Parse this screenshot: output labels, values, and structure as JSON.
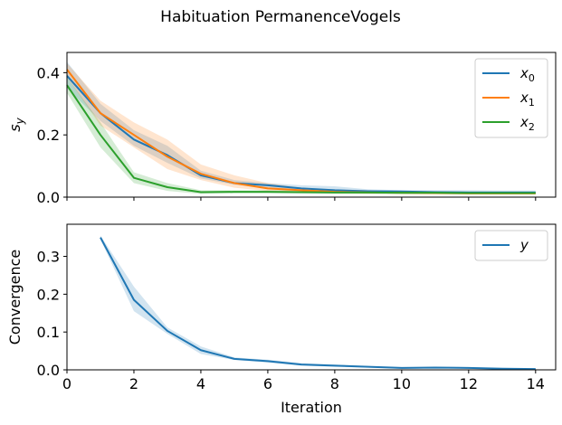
{
  "figure": {
    "title": "Habituation PermanenceVogels"
  },
  "colors": {
    "x0": "#1f77b4",
    "x1": "#ff7f0e",
    "x2": "#2ca02c",
    "y": "#1f77b4"
  },
  "chart_data": [
    {
      "type": "line",
      "ylabel": "s_y",
      "ylabel_parts": {
        "base": "s",
        "sub": "y"
      },
      "xlabel": "",
      "xlim": [
        0,
        14.6
      ],
      "ylim": [
        0,
        0.465
      ],
      "xticks": [
        0,
        2,
        4,
        6,
        8,
        10,
        12,
        14
      ],
      "yticks": [
        0.0,
        0.2,
        0.4
      ],
      "ytick_labels": [
        "0.0",
        "0.2",
        "0.4"
      ],
      "show_xtick_labels": false,
      "grid": false,
      "legend": "top-right",
      "x": [
        0,
        1,
        2,
        3,
        4,
        5,
        6,
        7,
        8,
        9,
        10,
        11,
        12,
        13,
        14
      ],
      "series": [
        {
          "name": "x0",
          "label_base": "x",
          "label_sub": "0",
          "color_key": "x0",
          "values": [
            0.39,
            0.27,
            0.185,
            0.135,
            0.07,
            0.045,
            0.038,
            0.028,
            0.022,
            0.019,
            0.018,
            0.016,
            0.015,
            0.015,
            0.015
          ],
          "lower": [
            0.35,
            0.245,
            0.165,
            0.11,
            0.06,
            0.04,
            0.03,
            0.022,
            0.015,
            0.014,
            0.013,
            0.012,
            0.011,
            0.011,
            0.011
          ],
          "upper": [
            0.435,
            0.3,
            0.215,
            0.165,
            0.085,
            0.055,
            0.045,
            0.038,
            0.035,
            0.025,
            0.022,
            0.022,
            0.022,
            0.021,
            0.021
          ]
        },
        {
          "name": "x1",
          "label_base": "x",
          "label_sub": "1",
          "color_key": "x1",
          "values": [
            0.41,
            0.27,
            0.2,
            0.13,
            0.075,
            0.045,
            0.028,
            0.022,
            0.017,
            0.015,
            0.014,
            0.013,
            0.012,
            0.012,
            0.012
          ],
          "lower": [
            0.385,
            0.23,
            0.16,
            0.09,
            0.055,
            0.03,
            0.02,
            0.015,
            0.012,
            0.011,
            0.01,
            0.01,
            0.01,
            0.009,
            0.009
          ],
          "upper": [
            0.43,
            0.31,
            0.24,
            0.185,
            0.105,
            0.07,
            0.045,
            0.03,
            0.025,
            0.022,
            0.02,
            0.018,
            0.017,
            0.017,
            0.017
          ]
        },
        {
          "name": "x2",
          "label_base": "x",
          "label_sub": "2",
          "color_key": "x2",
          "values": [
            0.36,
            0.2,
            0.062,
            0.032,
            0.016,
            0.017,
            0.017,
            0.016,
            0.015,
            0.015,
            0.014,
            0.014,
            0.013,
            0.013,
            0.013
          ],
          "lower": [
            0.335,
            0.16,
            0.045,
            0.02,
            0.01,
            0.012,
            0.012,
            0.011,
            0.01,
            0.01,
            0.009,
            0.009,
            0.009,
            0.009,
            0.009
          ],
          "upper": [
            0.385,
            0.24,
            0.08,
            0.045,
            0.022,
            0.022,
            0.022,
            0.021,
            0.02,
            0.02,
            0.019,
            0.018,
            0.018,
            0.018,
            0.018
          ]
        }
      ]
    },
    {
      "type": "line",
      "ylabel": "Convergence",
      "xlabel": "Iteration",
      "xlim": [
        0,
        14.6
      ],
      "ylim": [
        0,
        0.385
      ],
      "xticks": [
        0,
        2,
        4,
        6,
        8,
        10,
        12,
        14
      ],
      "xtick_labels": [
        "0",
        "2",
        "4",
        "6",
        "8",
        "10",
        "12",
        "14"
      ],
      "yticks": [
        0.0,
        0.1,
        0.2,
        0.3
      ],
      "ytick_labels": [
        "0.0",
        "0.1",
        "0.2",
        "0.3"
      ],
      "show_xtick_labels": true,
      "grid": false,
      "legend": "top-right",
      "x": [
        1,
        2,
        3,
        4,
        5,
        6,
        7,
        8,
        9,
        10,
        11,
        12,
        13,
        14
      ],
      "series": [
        {
          "name": "y",
          "label_base": "y",
          "label_sub": "",
          "color_key": "y",
          "values": [
            0.35,
            0.185,
            0.103,
            0.052,
            0.029,
            0.023,
            0.014,
            0.011,
            0.008,
            0.005,
            0.006,
            0.005,
            0.003,
            0.002
          ],
          "lower": [
            0.345,
            0.155,
            0.095,
            0.042,
            0.026,
            0.019,
            0.011,
            0.008,
            0.006,
            0.003,
            0.004,
            0.003,
            0.002,
            0.001
          ],
          "upper": [
            0.355,
            0.22,
            0.112,
            0.062,
            0.033,
            0.027,
            0.018,
            0.014,
            0.01,
            0.007,
            0.008,
            0.007,
            0.005,
            0.004
          ]
        }
      ]
    }
  ]
}
